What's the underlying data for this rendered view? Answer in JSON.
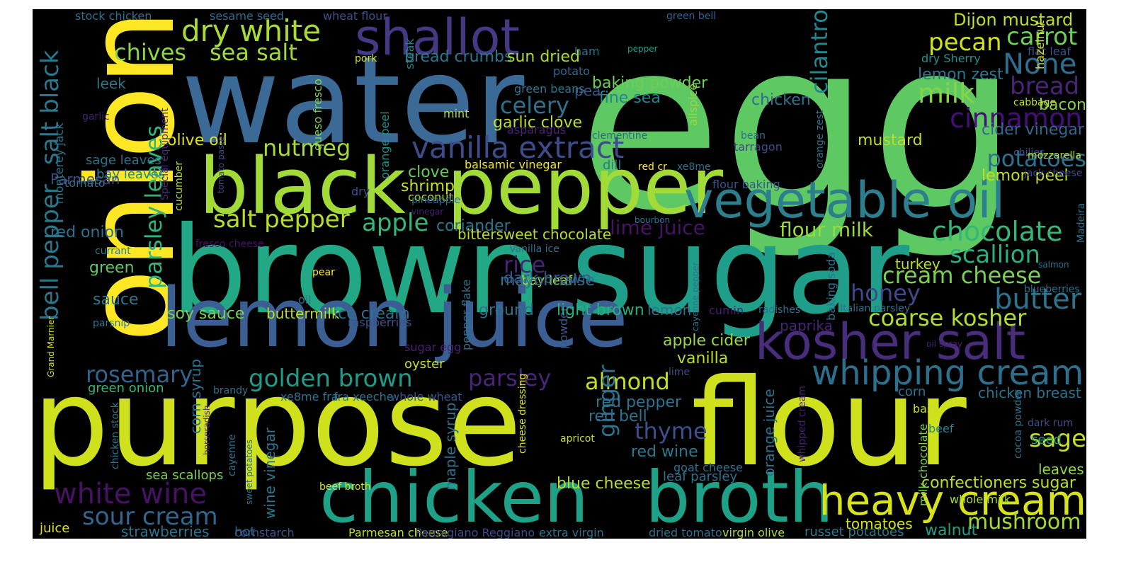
{
  "background": "#000000",
  "palette": [
    "#fde725",
    "#b5de2b",
    "#6ece58",
    "#35b779",
    "#1f9e89",
    "#26828e",
    "#31688e",
    "#3e4989",
    "#482878",
    "#440154"
  ],
  "words": [
    {
      "text": "egg",
      "color": "#5ec962"
    },
    {
      "text": "water",
      "color": "#3b6a97"
    },
    {
      "text": "onion",
      "color": "#fde725"
    },
    {
      "text": "brown",
      "color": "#22a884"
    },
    {
      "text": "sugar",
      "color": "#1f9e89"
    },
    {
      "text": "purpose",
      "color": "#cfe11c"
    },
    {
      "text": "flour",
      "color": "#cfe11c"
    },
    {
      "text": "black",
      "color": "#a2da37"
    },
    {
      "text": "pepper",
      "color": "#a2da37"
    },
    {
      "text": "lemon",
      "color": "#3b5f93"
    },
    {
      "text": "juice",
      "color": "#3b5f93"
    },
    {
      "text": "chicken",
      "color": "#1fa187"
    },
    {
      "text": "broth",
      "color": "#1fa187"
    },
    {
      "text": "vegetable oil",
      "color": "#2d7f8e"
    },
    {
      "text": "kosher salt",
      "color": "#472d7b"
    },
    {
      "text": "heavy cream",
      "color": "#d8e219"
    },
    {
      "text": "whipping cream",
      "color": "#2d708e"
    },
    {
      "text": "shallot",
      "color": "#443983"
    },
    {
      "text": "vanilla extract",
      "color": "#3e4c8a"
    },
    {
      "text": "dry white",
      "color": "#a8db34"
    },
    {
      "text": "sea salt",
      "color": "#9fda3a"
    },
    {
      "text": "chives",
      "color": "#8ed645"
    },
    {
      "text": "salt black",
      "color": "#2a788e"
    },
    {
      "text": "bell pepper",
      "color": "#2a788e"
    },
    {
      "text": "parsley leaves",
      "color": "#2fb47c"
    },
    {
      "text": "salt pepper",
      "color": "#b5de2b"
    },
    {
      "text": "apple",
      "color": "#35b779"
    },
    {
      "text": "nutmeg",
      "color": "#a5db36"
    },
    {
      "text": "celery",
      "color": "#2c728e"
    },
    {
      "text": "cilantro",
      "color": "#24878e"
    },
    {
      "text": "pecan",
      "color": "#d0e11c"
    },
    {
      "text": "carrot",
      "color": "#6ece58"
    },
    {
      "text": "None",
      "color": "#2e6e8e"
    },
    {
      "text": "bread",
      "color": "#482575"
    },
    {
      "text": "milk",
      "color": "#84d44b"
    },
    {
      "text": "cinnamon",
      "color": "#440f76"
    },
    {
      "text": "potatoes",
      "color": "#2c728e"
    },
    {
      "text": "chocolate",
      "color": "#35b779"
    },
    {
      "text": "scallion",
      "color": "#2ab07f"
    },
    {
      "text": "cream cheese",
      "color": "#7ad151"
    },
    {
      "text": "butter",
      "color": "#2c738e"
    },
    {
      "text": "honey",
      "color": "#3e4a89"
    },
    {
      "text": "coarse kosher",
      "color": "#b2dd2d"
    },
    {
      "text": "rice",
      "color": "#482475"
    },
    {
      "text": "dark brown",
      "color": "#3a548c"
    },
    {
      "text": "golden brown",
      "color": "#1e9c89"
    },
    {
      "text": "rosemary",
      "color": "#33638d"
    },
    {
      "text": "white wine",
      "color": "#471164"
    },
    {
      "text": "sour cream",
      "color": "#31668e"
    },
    {
      "text": "parsley",
      "color": "#482576"
    },
    {
      "text": "almond",
      "color": "#c2df23"
    },
    {
      "text": "ginger",
      "color": "#2c738e"
    },
    {
      "text": "thyme",
      "color": "#3b518b"
    },
    {
      "text": "sage",
      "color": "#c8e020"
    },
    {
      "text": "mushroom",
      "color": "#a5db36"
    },
    {
      "text": "lime juice",
      "color": "#471365"
    },
    {
      "text": "flour milk",
      "color": "#9bd93c"
    },
    {
      "text": "Dijon mustard",
      "color": "#bddf26"
    },
    {
      "text": "lemon zest",
      "color": "#2a768e"
    },
    {
      "text": "cider vinegar",
      "color": "#31688e"
    },
    {
      "text": "lemon peel",
      "color": "#c2df23"
    },
    {
      "text": "mustard",
      "color": "#bade28"
    },
    {
      "text": "bacon",
      "color": "#7fd34e"
    },
    {
      "text": "baking powder",
      "color": "#6ccd5a"
    },
    {
      "text": "fine sea",
      "color": "#25858e"
    },
    {
      "text": "chicken",
      "color": "#2d718e"
    },
    {
      "text": "garlic clove",
      "color": "#b8de29"
    },
    {
      "text": "olive oil",
      "color": "#dde318"
    },
    {
      "text": "bread crumbs",
      "color": "#2a788e"
    },
    {
      "text": "sun dried",
      "color": "#addc30"
    },
    {
      "text": "stock chicken",
      "color": "#2c718e"
    },
    {
      "text": "sesame seed",
      "color": "#2f6c8e"
    },
    {
      "text": "wheat flour",
      "color": "#3b518b"
    },
    {
      "text": "tomato paste",
      "color": "#3e4a89"
    },
    {
      "text": "green bell",
      "color": "#34618d"
    },
    {
      "text": "pea",
      "color": "#39568c"
    },
    {
      "text": "ham",
      "color": "#2c728e"
    },
    {
      "text": "pepper",
      "color": "#1fa088"
    },
    {
      "text": "pork",
      "color": "#d2e21b"
    },
    {
      "text": "leek",
      "color": "#2a788e"
    },
    {
      "text": "potato",
      "color": "#31688e"
    },
    {
      "text": "green beans",
      "color": "#2a768e"
    },
    {
      "text": "mint",
      "color": "#b5de2b"
    },
    {
      "text": "asparagus",
      "color": "#482173"
    },
    {
      "text": "clementine",
      "color": "#31688e"
    },
    {
      "text": "bean",
      "color": "#2d708e"
    },
    {
      "text": "tarragon",
      "color": "#3e4989"
    },
    {
      "text": "chilies",
      "color": "#3d4e8a"
    },
    {
      "text": "mozzarella",
      "color": "#b8de29"
    },
    {
      "text": "jack cheese",
      "color": "#3e4a89"
    },
    {
      "text": "dry Sherry",
      "color": "#20928c"
    },
    {
      "text": "flat leaf",
      "color": "#3b528b"
    },
    {
      "text": "hazelnut",
      "color": "#d2e21b"
    },
    {
      "text": "cabbage",
      "color": "#c5e021"
    },
    {
      "text": "allspice",
      "color": "#9bd93c"
    },
    {
      "text": "orange zest",
      "color": "#2c738e"
    },
    {
      "text": "garlic",
      "color": "#481f70"
    },
    {
      "text": "sage leaves",
      "color": "#2c738e"
    },
    {
      "text": "bay leaves",
      "color": "#25848e"
    },
    {
      "text": "Parmesan",
      "color": "#3e4c8a"
    },
    {
      "text": "tomato",
      "color": "#2c728e"
    },
    {
      "text": "monterey jack",
      "color": "#2a788e"
    },
    {
      "text": "Special equipment",
      "color": "#472d7b"
    },
    {
      "text": "queso fresco",
      "color": "#7fd34e"
    },
    {
      "text": "steak",
      "color": "#25858e"
    },
    {
      "text": "orange peel",
      "color": "#20928c"
    },
    {
      "text": "balsamic vinegar",
      "color": "#ece51b"
    },
    {
      "text": "dill",
      "color": "#2a788e"
    },
    {
      "text": "red cr",
      "color": "#fde725"
    },
    {
      "text": "xe8me",
      "color": "#2c728e"
    },
    {
      "text": "clove",
      "color": "#67cc5c"
    },
    {
      "text": "shrimp",
      "color": "#c5e021"
    },
    {
      "text": "coconut",
      "color": "#b8de29"
    },
    {
      "text": "pineapple",
      "color": "#2c728e"
    },
    {
      "text": "vinegar",
      "color": "#481f70"
    },
    {
      "text": "dry",
      "color": "#39568c"
    },
    {
      "text": "flour baking",
      "color": "#39558c"
    },
    {
      "text": "cucumber",
      "color": "#addc30"
    },
    {
      "text": "red onion",
      "color": "#2c728e"
    },
    {
      "text": "green",
      "color": "#5ec962"
    },
    {
      "text": "sauce",
      "color": "#2a788e"
    },
    {
      "text": "soy sauce",
      "color": "#7ad151"
    },
    {
      "text": "oil",
      "color": "#2c728e"
    },
    {
      "text": "buttermilk",
      "color": "#b8de29"
    },
    {
      "text": "ice cream",
      "color": "#2c728e"
    },
    {
      "text": "raspberries",
      "color": "#3b528b"
    },
    {
      "text": "fresco cheese",
      "color": "#471365"
    },
    {
      "text": "currant",
      "color": "#25848e"
    },
    {
      "text": "parsnip",
      "color": "#2c738e"
    },
    {
      "text": "Grand Marnier",
      "color": "#d2e21b"
    },
    {
      "text": "juice",
      "color": "#dde318"
    },
    {
      "text": "strawberries",
      "color": "#2a768e"
    },
    {
      "text": "cornstarch",
      "color": "#39568c"
    },
    {
      "text": "Parmesan cheese",
      "color": "#bddf26"
    },
    {
      "text": "Parmigiano Reggiano",
      "color": "#3e4a89"
    },
    {
      "text": "extra virgin",
      "color": "#2c728e"
    },
    {
      "text": "dried tomato",
      "color": "#2c728e"
    },
    {
      "text": "virgin olive",
      "color": "#addc30"
    },
    {
      "text": "russet potatoes",
      "color": "#2a788e"
    },
    {
      "text": "walnut",
      "color": "#1fa088"
    },
    {
      "text": "tomatoes",
      "color": "#d2e21b"
    },
    {
      "text": "confectioners sugar",
      "color": "#b8de29"
    },
    {
      "text": "whole milk",
      "color": "#a2da37"
    },
    {
      "text": "leaves",
      "color": "#93d741"
    },
    {
      "text": "chicken breast",
      "color": "#2c728e"
    },
    {
      "text": "corn",
      "color": "#2c738e"
    },
    {
      "text": "basil",
      "color": "#c5e021"
    },
    {
      "text": "beef",
      "color": "#25858e"
    },
    {
      "text": "seed",
      "color": "#1fa088"
    },
    {
      "text": "milk chocolate",
      "color": "#7ad151"
    },
    {
      "text": "cocoa powder",
      "color": "#2c728e"
    },
    {
      "text": "dark rum",
      "color": "#3e4c8a"
    },
    {
      "text": "whipped cream",
      "color": "#481f70"
    },
    {
      "text": "orange juice",
      "color": "#2c728e"
    },
    {
      "text": "red wine",
      "color": "#2a788e"
    },
    {
      "text": "goat cheese",
      "color": "#2c728e"
    },
    {
      "text": "leaf parsley",
      "color": "#2c728e"
    },
    {
      "text": "blue cheese",
      "color": "#b5de2b"
    },
    {
      "text": "beef broth",
      "color": "#d2e21b"
    },
    {
      "text": "cheese dressing",
      "color": "#dde318"
    },
    {
      "text": "apricot",
      "color": "#c5e021"
    },
    {
      "text": "pear",
      "color": "#fde725"
    },
    {
      "text": "maple syrup",
      "color": "#2c728e"
    },
    {
      "text": "wine vinegar",
      "color": "#2a788e"
    },
    {
      "text": "hot",
      "color": "#34618d"
    },
    {
      "text": "sea scallops",
      "color": "#7ad151"
    },
    {
      "text": "sweet potatoes",
      "color": "#2c728e"
    },
    {
      "text": "horseradish",
      "color": "#481f70"
    },
    {
      "text": "cayenne",
      "color": "#2c728e"
    },
    {
      "text": "chicken stock",
      "color": "#2a768e"
    },
    {
      "text": "corn syrup",
      "color": "#2c738e"
    },
    {
      "text": "green onion",
      "color": "#35b779"
    },
    {
      "text": "brandy",
      "color": "#2c728e"
    },
    {
      "text": "xe8me fra",
      "color": "#2c728e"
    },
    {
      "text": "fra xeeche",
      "color": "#2c728e"
    },
    {
      "text": "whole wheat",
      "color": "#39568c"
    },
    {
      "text": "oyster",
      "color": "#c5e021"
    },
    {
      "text": "sugar egg",
      "color": "#482173"
    },
    {
      "text": "bay leaf",
      "color": "#b5de2b"
    },
    {
      "text": "pepper flake",
      "color": "#2c728e"
    },
    {
      "text": "powder",
      "color": "#39568c"
    },
    {
      "text": "apple cider",
      "color": "#9bd93c"
    },
    {
      "text": "vanilla",
      "color": "#b5de2b"
    },
    {
      "text": "lime",
      "color": "#3e4a89"
    },
    {
      "text": "red pepper",
      "color": "#2c738e"
    },
    {
      "text": "red bell",
      "color": "#2c728e"
    },
    {
      "text": "ground",
      "color": "#2c728e"
    },
    {
      "text": "light brown",
      "color": "#2ab07f"
    },
    {
      "text": "lemon",
      "color": "#2c738e"
    },
    {
      "text": "mayonnaise",
      "color": "#2c728e"
    },
    {
      "text": "coriander",
      "color": "#2a788e"
    },
    {
      "text": "bittersweet chocolate",
      "color": "#b8de29"
    },
    {
      "text": "Vanilla ice",
      "color": "#2c728e"
    },
    {
      "text": "bourbon",
      "color": "#2c738e"
    },
    {
      "text": "cayenne pepper",
      "color": "#2c728e"
    },
    {
      "text": "cumin",
      "color": "#481f70"
    },
    {
      "text": "radishes",
      "color": "#2c728e"
    },
    {
      "text": "paprika",
      "color": "#482475"
    },
    {
      "text": "baking soda",
      "color": "#2c738e"
    },
    {
      "text": "Italian parsley",
      "color": "#2c728e"
    },
    {
      "text": "blueberries",
      "color": "#2c728e"
    },
    {
      "text": "salmon",
      "color": "#2c728e"
    },
    {
      "text": "Madeira",
      "color": "#2c728e"
    },
    {
      "text": "turkey",
      "color": "#b5de2b"
    },
    {
      "text": "oil spray",
      "color": "#481f70"
    }
  ]
}
